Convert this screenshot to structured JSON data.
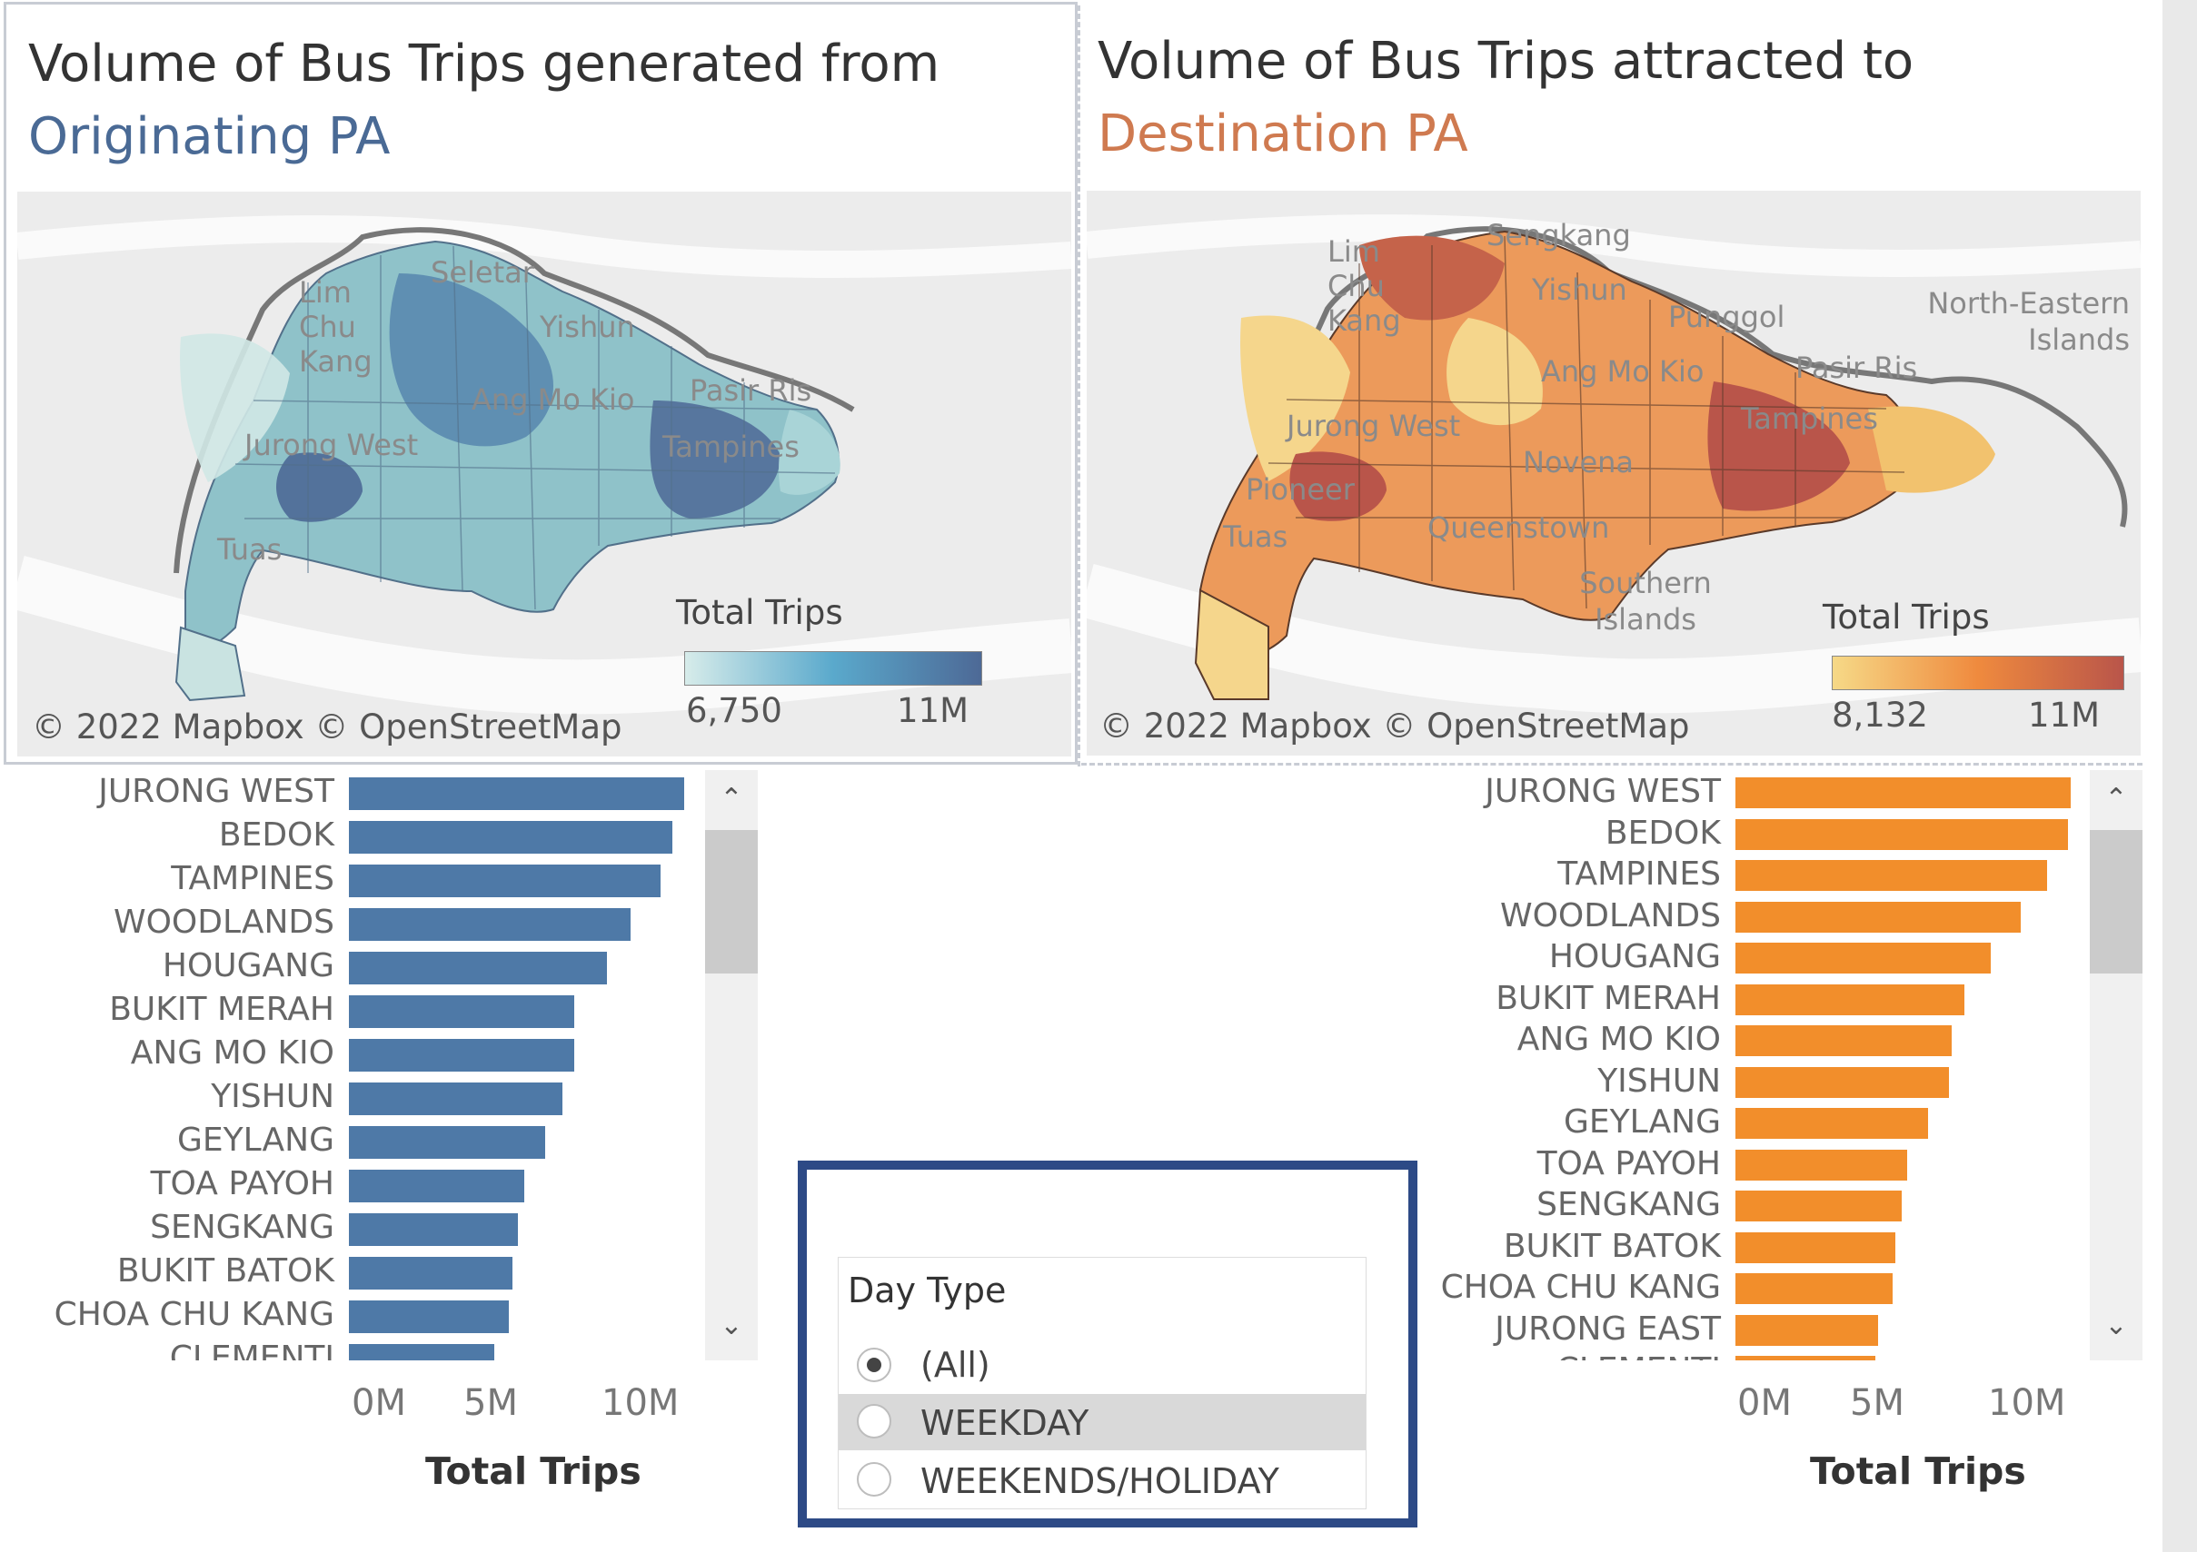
{
  "left_panel": {
    "title_line1": "Volume of Bus Trips generated from",
    "title_line2": "Originating PA",
    "attribution": "© 2022 Mapbox © OpenStreetMap",
    "legend": {
      "title": "Total Trips",
      "min_label": "6,750",
      "max_label": "11M",
      "colors": [
        "#d7ecea",
        "#5aa9cc",
        "#4d6996"
      ]
    },
    "place_labels": [
      "Lim Chu Kang",
      "Seletar",
      "Yishun",
      "Ang Mo Kio",
      "Jurong West",
      "Tampines",
      "Pasir Ris",
      "Tuas"
    ]
  },
  "right_panel": {
    "title_line1": "Volume of Bus Trips attracted to",
    "title_line2": "Destination PA",
    "attribution": "© 2022 Mapbox © OpenStreetMap",
    "legend": {
      "title": "Total Trips",
      "min_label": "8,132",
      "max_label": "11M",
      "colors": [
        "#f6d987",
        "#ef8a3e",
        "#b9554a"
      ]
    },
    "place_labels": [
      "Lim Chu Kang",
      "Sengkang",
      "Yishun",
      "Punggol",
      "North-Eastern Islands",
      "Ang Mo Kio",
      "Pasir Ris",
      "Tampines",
      "Jurong West",
      "Novena",
      "Pioneer",
      "Queenstown",
      "Tuas",
      "Southern Islands"
    ]
  },
  "origin_chart": {
    "chart_data": {
      "type": "bar",
      "orientation": "horizontal",
      "categories": [
        "JURONG WEST",
        "BEDOK",
        "TAMPINES",
        "WOODLANDS",
        "HOUGANG",
        "BUKIT MERAH",
        "ANG MO KIO",
        "YISHUN",
        "GEYLANG",
        "TOA PAYOH",
        "SENGKANG",
        "BUKIT BATOK",
        "CHOA CHU KANG",
        "CLEMENTI"
      ],
      "values": [
        11.3,
        10.9,
        10.5,
        9.5,
        8.7,
        7.6,
        7.6,
        7.2,
        6.6,
        5.9,
        5.7,
        5.5,
        5.4,
        4.9
      ],
      "xlabel": "Total Trips",
      "xticks": [
        "0M",
        "5M",
        "10M"
      ],
      "xlim": [
        0,
        12
      ],
      "color": "#4e79a7"
    }
  },
  "destination_chart": {
    "chart_data": {
      "type": "bar",
      "orientation": "horizontal",
      "categories": [
        "JURONG WEST",
        "BEDOK",
        "TAMPINES",
        "WOODLANDS",
        "HOUGANG",
        "BUKIT MERAH",
        "ANG MO KIO",
        "YISHUN",
        "GEYLANG",
        "TOA PAYOH",
        "SENGKANG",
        "BUKIT BATOK",
        "CHOA CHU KANG",
        "JURONG EAST",
        "CLEMENTI"
      ],
      "values": [
        11.3,
        11.2,
        10.5,
        9.6,
        8.6,
        7.7,
        7.3,
        7.2,
        6.5,
        5.8,
        5.6,
        5.4,
        5.3,
        4.8,
        4.7
      ],
      "xlabel": "Total Trips",
      "xticks": [
        "0M",
        "5M",
        "10M"
      ],
      "xlim": [
        0,
        12
      ],
      "color": "#f28e2b"
    }
  },
  "filter": {
    "title": "Day Type",
    "options": [
      {
        "label": "(All)",
        "selected": true
      },
      {
        "label": "WEEKDAY",
        "selected": false
      },
      {
        "label": "WEEKENDS/HOLIDAY",
        "selected": false
      }
    ]
  }
}
